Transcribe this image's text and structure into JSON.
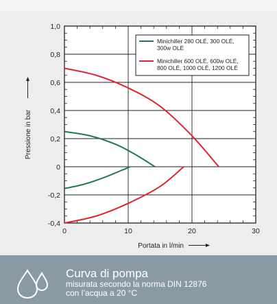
{
  "chart_data": {
    "type": "line",
    "xlabel": "Portata in l/min",
    "ylabel": "Pressione in bar",
    "xlim": [
      0,
      30
    ],
    "ylim": [
      -0.4,
      1.0
    ],
    "x_ticks": [
      "0",
      "10",
      "20",
      "30"
    ],
    "y_ticks": [
      "-0,4",
      "-0,2",
      "0",
      "0,2",
      "0,4",
      "0,6",
      "0,8",
      "1,0"
    ],
    "grid": true,
    "legend_position": "top-right",
    "series": [
      {
        "name": "Minichiller 280 OLÉ, 300 OLÉ, 300w OLÉ",
        "color": "#1e7a4a",
        "curves": [
          {
            "x": [
              0,
              4,
              8,
              11,
              14.2
            ],
            "y": [
              0.25,
              0.22,
              0.16,
              0.09,
              0.0
            ]
          },
          {
            "x": [
              0,
              3,
              6,
              9,
              10.3
            ],
            "y": [
              -0.155,
              -0.125,
              -0.08,
              -0.025,
              0.0
            ]
          }
        ]
      },
      {
        "name": "Minichiller 600 OLÉ, 600w OLÉ, 800 OLÉ, 1000 OLÉ, 1200 OLÉ",
        "color": "#e2222e",
        "curves": [
          {
            "x": [
              0,
              5,
              10,
              15,
              20,
              24.2
            ],
            "y": [
              0.7,
              0.65,
              0.56,
              0.43,
              0.22,
              0.0
            ]
          },
          {
            "x": [
              0,
              5,
              10,
              15,
              18.7
            ],
            "y": [
              -0.4,
              -0.35,
              -0.26,
              -0.14,
              0.0
            ]
          }
        ]
      }
    ]
  },
  "caption": {
    "title": "Curva di pompa",
    "line1": "misurata secondo la norma DIN 12876",
    "line2": "con l’acqua a 20 °C",
    "icon": "water-drops-icon"
  }
}
